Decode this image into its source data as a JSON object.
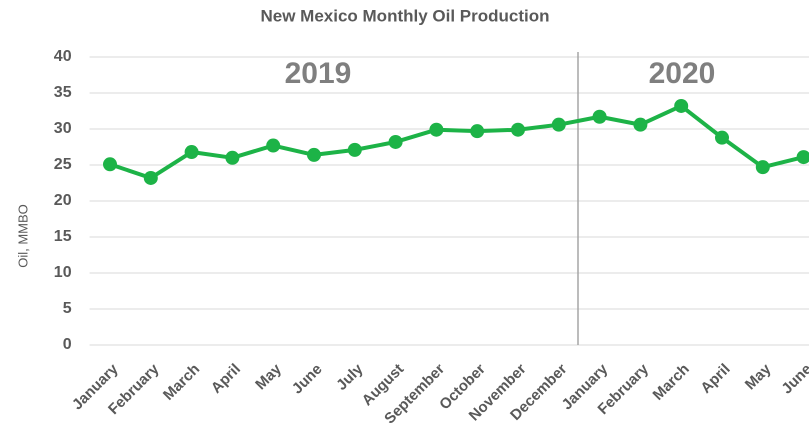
{
  "chart_data": {
    "type": "line",
    "title": "New Mexico Monthly Oil Production",
    "y_label": "Oil, MMBO",
    "annotations": [
      "2019",
      "2020"
    ],
    "categories": [
      "January",
      "February",
      "March",
      "April",
      "May",
      "June",
      "July",
      "August",
      "September",
      "October",
      "November",
      "December",
      "January",
      "February",
      "March",
      "April",
      "May",
      "June"
    ],
    "series": [
      {
        "name": "Oil",
        "color": "#1db347",
        "values": [
          25.1,
          23.2,
          26.8,
          26.0,
          27.7,
          26.4,
          27.1,
          28.2,
          29.9,
          29.7,
          29.9,
          30.6,
          31.7,
          30.6,
          33.2,
          28.8,
          24.7,
          26.1
        ]
      }
    ],
    "ylim": [
      0,
      40
    ],
    "yticks": [
      0,
      5,
      10,
      15,
      20,
      25,
      30,
      35,
      40
    ],
    "grid": true
  }
}
